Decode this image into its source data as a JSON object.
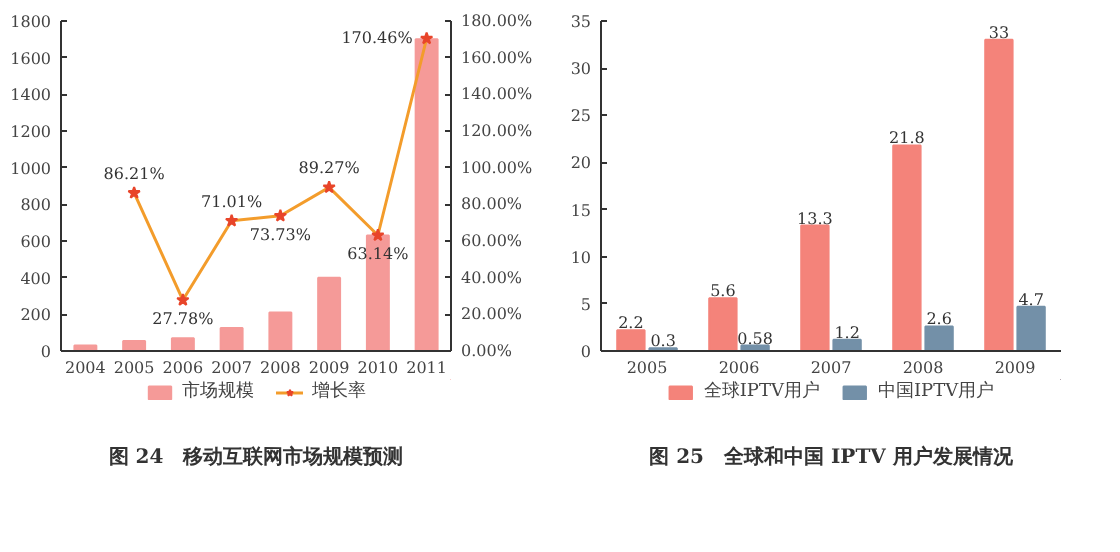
{
  "chart_data": [
    {
      "type": "bar",
      "title": "图 24　移动互联网市场规模预测",
      "categories": [
        "2004",
        "2005",
        "2006",
        "2007",
        "2008",
        "2009",
        "2010",
        "2011"
      ],
      "series": [
        {
          "name": "市场规模",
          "type": "bar",
          "color": "#f59a98",
          "values": [
            30,
            55,
            70,
            125,
            210,
            400,
            630,
            1700
          ]
        },
        {
          "name": "增长率",
          "type": "line",
          "axis": "y2",
          "color": "#f39c2b",
          "marker": "star",
          "values": [
            null,
            86.21,
            27.78,
            71.01,
            73.73,
            89.27,
            63.14,
            170.46
          ],
          "value_labels": [
            null,
            "86.21%",
            "27.78%",
            "71.01%",
            "73.73%",
            "89.27%",
            "63.14%",
            "170.46%"
          ]
        }
      ],
      "ylim": [
        0,
        1800
      ],
      "yticks": [
        0,
        200,
        400,
        600,
        800,
        1000,
        1200,
        1400,
        1600,
        1800
      ],
      "y2lim": [
        0,
        180
      ],
      "y2ticks": [
        {
          "value": 0,
          "label": "0.00%"
        },
        {
          "value": 20,
          "label": "20.00%"
        },
        {
          "value": 40,
          "label": "40.00%"
        },
        {
          "value": 60,
          "label": "60.00%"
        },
        {
          "value": 80,
          "label": "80.00%"
        },
        {
          "value": 100,
          "label": "100.00%"
        },
        {
          "value": 120,
          "label": "120.00%"
        },
        {
          "value": 140,
          "label": "140.00%"
        },
        {
          "value": 160,
          "label": "160.00%"
        },
        {
          "value": 180,
          "label": "180.00%"
        }
      ],
      "grid": false,
      "legend": "bottom"
    },
    {
      "type": "bar",
      "title": "图 25　全球和中国 IPTV 用户发展情况",
      "categories": [
        "2005",
        "2006",
        "2007",
        "2008",
        "2009"
      ],
      "series": [
        {
          "name": "全球IPTV用户",
          "color": "#f4837a",
          "values": [
            2.2,
            5.6,
            13.3,
            21.8,
            33
          ]
        },
        {
          "name": "中国IPTV用户",
          "color": "#7390a8",
          "values": [
            0.3,
            0.58,
            1.2,
            2.6,
            4.7
          ]
        }
      ],
      "ylim": [
        0,
        35
      ],
      "yticks": [
        0,
        5,
        10,
        15,
        20,
        25,
        30,
        35
      ],
      "data_labels": true,
      "grid": false,
      "legend": "bottom"
    }
  ]
}
